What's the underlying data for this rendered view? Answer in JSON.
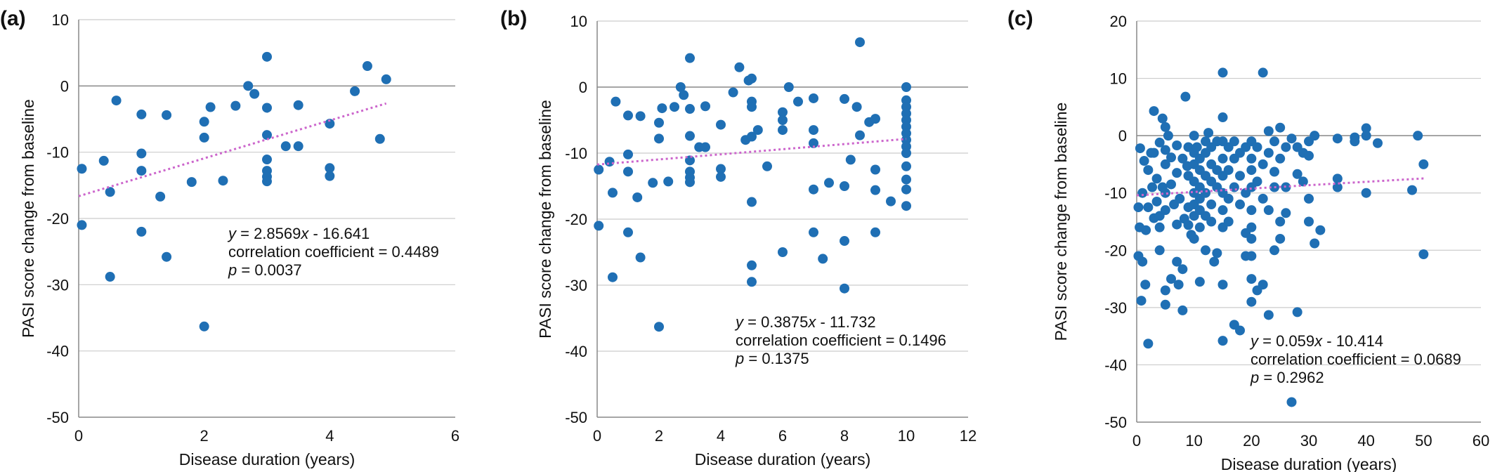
{
  "colors": {
    "point": "#1f6fb4",
    "trendline": "#cc66cc",
    "grid": "#cccccc",
    "axis": "#888888"
  },
  "chart_data": [
    {
      "type": "scatter",
      "panel_label": "(a)",
      "xlabel": "Disease duration (years)",
      "ylabel": "PASI score change from baseline",
      "xlim": [
        0,
        6
      ],
      "ylim": [
        -50,
        10
      ],
      "x_ticks": [
        0,
        2,
        4,
        6
      ],
      "y_ticks": [
        -50,
        -40,
        -30,
        -20,
        -10,
        0,
        10
      ],
      "grid": "horizontal",
      "trendline": {
        "slope": 2.8569,
        "intercept": -16.641,
        "x_range": [
          0,
          4.9
        ],
        "style": "dotted"
      },
      "annotation": {
        "equation_prefix": "y",
        "equation_rest": " = 2.8569",
        "equation_var": "x",
        "equation_suffix": " - 16.641",
        "correlation": "correlation coefficient = 0.4489",
        "p_prefix": "p",
        "p_rest": " = 0.0037"
      },
      "points": [
        [
          0.05,
          -12.5
        ],
        [
          0.05,
          -21
        ],
        [
          0.4,
          -11.3
        ],
        [
          0.5,
          -16
        ],
        [
          0.5,
          -28.8
        ],
        [
          0.6,
          -2.2
        ],
        [
          1,
          -4.3
        ],
        [
          1,
          -10.2
        ],
        [
          1,
          -12.8
        ],
        [
          1,
          -22
        ],
        [
          1.3,
          -16.7
        ],
        [
          1.4,
          -4.4
        ],
        [
          1.4,
          -25.8
        ],
        [
          1.8,
          -14.5
        ],
        [
          2,
          -5.4
        ],
        [
          2,
          -7.8
        ],
        [
          2,
          -36.3
        ],
        [
          2.1,
          -3.2
        ],
        [
          2.3,
          -14.3
        ],
        [
          2.5,
          -3
        ],
        [
          2.7,
          0
        ],
        [
          2.8,
          -1.2
        ],
        [
          3,
          4.4
        ],
        [
          3,
          -3.3
        ],
        [
          3,
          -7.4
        ],
        [
          3,
          -11.1
        ],
        [
          3,
          -12.8
        ],
        [
          3,
          -13.7
        ],
        [
          3,
          -14.4
        ],
        [
          3.3,
          -9.1
        ],
        [
          3.5,
          -2.9
        ],
        [
          3.5,
          -9.1
        ],
        [
          4,
          -5.7
        ],
        [
          4,
          -12.4
        ],
        [
          4,
          -13.6
        ],
        [
          4.4,
          -0.8
        ],
        [
          4.6,
          3
        ],
        [
          4.8,
          -8
        ],
        [
          4.9,
          1
        ]
      ]
    },
    {
      "type": "scatter",
      "panel_label": "(b)",
      "xlabel": "Disease duration (years)",
      "ylabel": "PASI score change from baseline",
      "xlim": [
        0,
        12
      ],
      "ylim": [
        -50,
        10
      ],
      "x_ticks": [
        0,
        2,
        4,
        6,
        8,
        10,
        12
      ],
      "y_ticks": [
        -50,
        -40,
        -30,
        -20,
        -10,
        0,
        10
      ],
      "grid": "horizontal",
      "trendline": {
        "slope": 0.3875,
        "intercept": -11.732,
        "x_range": [
          0,
          10
        ],
        "style": "dotted"
      },
      "annotation": {
        "equation_prefix": "y",
        "equation_rest": " = 0.3875",
        "equation_var": "x",
        "equation_suffix": " - 11.732",
        "correlation": "correlation coefficient = 0.1496",
        "p_prefix": "p",
        "p_rest": " = 0.1375"
      },
      "points": [
        [
          0.05,
          -12.5
        ],
        [
          0.05,
          -21
        ],
        [
          0.4,
          -11.3
        ],
        [
          0.5,
          -16
        ],
        [
          0.5,
          -28.8
        ],
        [
          0.6,
          -2.2
        ],
        [
          1,
          -4.3
        ],
        [
          1,
          -10.2
        ],
        [
          1,
          -12.8
        ],
        [
          1,
          -22
        ],
        [
          1.3,
          -16.7
        ],
        [
          1.4,
          -4.4
        ],
        [
          1.4,
          -25.8
        ],
        [
          1.8,
          -14.5
        ],
        [
          2,
          -5.4
        ],
        [
          2,
          -7.8
        ],
        [
          2,
          -36.3
        ],
        [
          2.1,
          -3.2
        ],
        [
          2.3,
          -14.3
        ],
        [
          2.5,
          -3
        ],
        [
          2.7,
          0
        ],
        [
          2.8,
          -1.2
        ],
        [
          3,
          4.4
        ],
        [
          3,
          -3.3
        ],
        [
          3,
          -7.4
        ],
        [
          3,
          -11.1
        ],
        [
          3,
          -12.8
        ],
        [
          3,
          -13.7
        ],
        [
          3,
          -14.4
        ],
        [
          3.3,
          -9.1
        ],
        [
          3.5,
          -2.9
        ],
        [
          3.5,
          -9.1
        ],
        [
          4,
          -5.7
        ],
        [
          4,
          -12.4
        ],
        [
          4,
          -13.6
        ],
        [
          4.4,
          -0.8
        ],
        [
          4.6,
          3
        ],
        [
          4.8,
          -8
        ],
        [
          4.9,
          1
        ],
        [
          5,
          -2.2
        ],
        [
          5,
          -3
        ],
        [
          5,
          -7.5
        ],
        [
          5,
          -17.4
        ],
        [
          5,
          -27
        ],
        [
          5,
          -29.5
        ],
        [
          5,
          1.3
        ],
        [
          5.2,
          -6.5
        ],
        [
          5.5,
          -12
        ],
        [
          6,
          -3.8
        ],
        [
          6,
          -5
        ],
        [
          6,
          -6.5
        ],
        [
          6,
          -25
        ],
        [
          6.2,
          0
        ],
        [
          6.5,
          -2.2
        ],
        [
          7,
          -1.7
        ],
        [
          7,
          -6.5
        ],
        [
          7,
          -8.5
        ],
        [
          7,
          -15.5
        ],
        [
          7,
          -22
        ],
        [
          7.3,
          -26
        ],
        [
          7.5,
          -14.5
        ],
        [
          8,
          -1.8
        ],
        [
          8,
          -15
        ],
        [
          8,
          -23.3
        ],
        [
          8,
          -30.5
        ],
        [
          8.2,
          -11
        ],
        [
          8.4,
          -3
        ],
        [
          8.5,
          6.8
        ],
        [
          8.5,
          -7.3
        ],
        [
          8.8,
          -5.3
        ],
        [
          9,
          -4.8
        ],
        [
          9,
          -12.5
        ],
        [
          9,
          -15.6
        ],
        [
          9,
          -22
        ],
        [
          9.5,
          -17.3
        ],
        [
          10,
          0
        ],
        [
          10,
          -2
        ],
        [
          10,
          -3
        ],
        [
          10,
          -4
        ],
        [
          10,
          -5
        ],
        [
          10,
          -6
        ],
        [
          10,
          -7
        ],
        [
          10,
          -8
        ],
        [
          10,
          -9
        ],
        [
          10,
          -10
        ],
        [
          10,
          -12
        ],
        [
          10,
          -14
        ],
        [
          10,
          -15.5
        ],
        [
          10,
          -18
        ]
      ]
    },
    {
      "type": "scatter",
      "panel_label": "(c)",
      "xlabel": "Disease duration (years)",
      "ylabel": "PASI score change from baseline",
      "xlim": [
        0,
        60
      ],
      "ylim": [
        -50,
        20
      ],
      "x_ticks": [
        0,
        10,
        20,
        30,
        40,
        50,
        60
      ],
      "y_ticks": [
        -50,
        -40,
        -30,
        -20,
        -10,
        0,
        10,
        20
      ],
      "grid": "horizontal",
      "trendline": {
        "slope": 0.059,
        "intercept": -10.414,
        "x_range": [
          0,
          50
        ],
        "style": "dotted"
      },
      "annotation": {
        "equation_prefix": "y",
        "equation_rest": " = 0.059",
        "equation_var": "x",
        "equation_suffix": " - 10.414",
        "correlation": "correlation coefficient = 0.0689",
        "p_prefix": "p",
        "p_rest": " = 0.2962"
      },
      "points": [
        [
          0.3,
          -12.5
        ],
        [
          0.3,
          -21
        ],
        [
          0.5,
          -16
        ],
        [
          0.6,
          -2.2
        ],
        [
          0.8,
          -28.8
        ],
        [
          1,
          -10
        ],
        [
          1,
          -22
        ],
        [
          1.3,
          -4.4
        ],
        [
          1.5,
          -26
        ],
        [
          1.6,
          -16.5
        ],
        [
          2,
          -36.3
        ],
        [
          2,
          -12.5
        ],
        [
          2,
          -6
        ],
        [
          2.5,
          -3
        ],
        [
          2.7,
          -9
        ],
        [
          3,
          4.3
        ],
        [
          3,
          -3
        ],
        [
          3,
          -14.4
        ],
        [
          3.5,
          -7.5
        ],
        [
          3.5,
          -11.5
        ],
        [
          4,
          -1.2
        ],
        [
          4,
          -14
        ],
        [
          4,
          -16
        ],
        [
          4,
          -20
        ],
        [
          4.5,
          3
        ],
        [
          4.5,
          -9
        ],
        [
          5,
          -5
        ],
        [
          5,
          1.5
        ],
        [
          5,
          -2.5
        ],
        [
          5,
          -10
        ],
        [
          5,
          -13
        ],
        [
          5,
          -27
        ],
        [
          5,
          -29.5
        ],
        [
          5.5,
          0
        ],
        [
          6,
          -3.8
        ],
        [
          6,
          -8.5
        ],
        [
          6,
          -25
        ],
        [
          6.5,
          -12
        ],
        [
          7,
          -1.7
        ],
        [
          7,
          -6.5
        ],
        [
          7,
          -15.5
        ],
        [
          7,
          -22
        ],
        [
          7.3,
          -26
        ],
        [
          7.5,
          -11
        ],
        [
          8,
          -4
        ],
        [
          8,
          -23.3
        ],
        [
          8,
          -30.5
        ],
        [
          8.3,
          -14.5
        ],
        [
          8.5,
          6.8
        ],
        [
          8.8,
          -5.3
        ],
        [
          9,
          -2
        ],
        [
          9,
          -7
        ],
        [
          9,
          -12.5
        ],
        [
          9,
          -15.6
        ],
        [
          9.5,
          -17.3
        ],
        [
          10,
          0
        ],
        [
          10,
          -3
        ],
        [
          10,
          -5
        ],
        [
          10,
          -8
        ],
        [
          10,
          -10
        ],
        [
          10,
          -12
        ],
        [
          10,
          -14
        ],
        [
          10,
          -18
        ],
        [
          10.5,
          -2
        ],
        [
          11,
          -4
        ],
        [
          11,
          -6
        ],
        [
          11,
          -9
        ],
        [
          11,
          -11
        ],
        [
          11,
          -13
        ],
        [
          11,
          -16
        ],
        [
          11,
          -25.5
        ],
        [
          12,
          -1
        ],
        [
          12,
          -3
        ],
        [
          12,
          -7
        ],
        [
          12,
          -10
        ],
        [
          12,
          -14
        ],
        [
          12,
          -20
        ],
        [
          12.5,
          0.5
        ],
        [
          13,
          -2
        ],
        [
          13,
          -5
        ],
        [
          13,
          -8
        ],
        [
          13,
          -12
        ],
        [
          13,
          -15
        ],
        [
          13.5,
          -22
        ],
        [
          14,
          -1
        ],
        [
          14,
          -6
        ],
        [
          14,
          -9
        ],
        [
          14,
          -20.5
        ],
        [
          15,
          11
        ],
        [
          15,
          3.2
        ],
        [
          15,
          -1
        ],
        [
          15,
          -4
        ],
        [
          15,
          -7
        ],
        [
          15,
          -10
        ],
        [
          15,
          -13
        ],
        [
          15,
          -16
        ],
        [
          15,
          -26
        ],
        [
          15,
          -35.8
        ],
        [
          16,
          -2
        ],
        [
          16,
          -6
        ],
        [
          16,
          -11
        ],
        [
          16,
          -15
        ],
        [
          17,
          -1
        ],
        [
          17,
          -4
        ],
        [
          17,
          -9
        ],
        [
          17,
          -33
        ],
        [
          18,
          -3
        ],
        [
          18,
          -7
        ],
        [
          18,
          -12
        ],
        [
          18,
          -34
        ],
        [
          19,
          -2
        ],
        [
          19,
          -10
        ],
        [
          19,
          -17
        ],
        [
          19,
          -21
        ],
        [
          20,
          -1
        ],
        [
          20,
          -4
        ],
        [
          20,
          -6
        ],
        [
          20,
          -9
        ],
        [
          20,
          -13
        ],
        [
          20,
          -16
        ],
        [
          20,
          -18
        ],
        [
          20,
          -21
        ],
        [
          20,
          -25
        ],
        [
          20,
          -29
        ],
        [
          21,
          -2
        ],
        [
          21,
          -8
        ],
        [
          21,
          -27
        ],
        [
          22,
          11
        ],
        [
          22,
          -5
        ],
        [
          22,
          -11
        ],
        [
          22,
          -26
        ],
        [
          23,
          0.8
        ],
        [
          23,
          -3
        ],
        [
          23,
          -13
        ],
        [
          23,
          -31.3
        ],
        [
          24,
          -1
        ],
        [
          24,
          -6.3
        ],
        [
          24,
          -9
        ],
        [
          24,
          -20
        ],
        [
          25,
          1.4
        ],
        [
          25,
          -4
        ],
        [
          25,
          -15
        ],
        [
          25,
          -18
        ],
        [
          26,
          -2
        ],
        [
          26,
          -9
        ],
        [
          26,
          -13.5
        ],
        [
          27,
          -0.5
        ],
        [
          27,
          -46.5
        ],
        [
          28,
          -2
        ],
        [
          28,
          -6.7
        ],
        [
          28,
          -30.8
        ],
        [
          29,
          -3
        ],
        [
          29,
          -8
        ],
        [
          30,
          -1
        ],
        [
          30,
          -3.5
        ],
        [
          30,
          -11
        ],
        [
          30,
          -15
        ],
        [
          31,
          0
        ],
        [
          31,
          -18.8
        ],
        [
          32,
          -16.5
        ],
        [
          35,
          -0.5
        ],
        [
          35,
          -7.5
        ],
        [
          35,
          -9
        ],
        [
          38,
          -0.3
        ],
        [
          38,
          -1
        ],
        [
          40,
          1.3
        ],
        [
          40,
          0
        ],
        [
          40,
          -10
        ],
        [
          42,
          -1.3
        ],
        [
          48,
          -9.5
        ],
        [
          49,
          0
        ],
        [
          50,
          -5
        ],
        [
          50,
          -20.7
        ]
      ]
    }
  ]
}
